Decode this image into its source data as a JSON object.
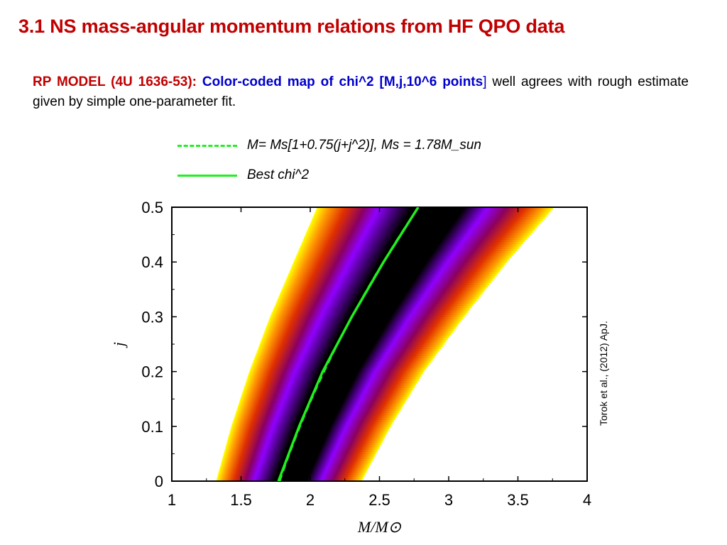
{
  "title": "3.1 NS mass-angular momentum relations from HF QPO data",
  "intro": {
    "part1": "RP MODEL (4U 1636-53): ",
    "part2": "Color-coded map of chi^2 [M,j,10^6 points",
    "part3": "]",
    "part4": " well agrees with rough estimate given by simple one-parameter fit."
  },
  "legend": {
    "dashed_color": "#22ee22",
    "solid_color": "#22ee22",
    "dashed_label": "M= Ms[1+0.75(j+j^2)],  Ms = 1.78M_sun",
    "solid_label": "Best  chi^2"
  },
  "credit": "Torok et al., (2012) ApJ.",
  "chart_data": {
    "type": "heatmap",
    "xlabel": "M/M⊙",
    "ylabel": "j",
    "xlim": [
      1,
      4
    ],
    "ylim": [
      0,
      0.5
    ],
    "x_ticks": [
      "1",
      "1.5",
      "2",
      "2.5",
      "3",
      "3.5",
      "4"
    ],
    "y_ticks": [
      "0",
      "0.1",
      "0.2",
      "0.3",
      "0.4",
      "0.5"
    ],
    "colormap": [
      "#ffff00",
      "#ff9900",
      "#e03000",
      "#8a0060",
      "#9000ff",
      "#000000"
    ],
    "best_fit_curve": {
      "style": "solid",
      "color": "#22ee22",
      "points": [
        [
          1.77,
          0.0
        ],
        [
          1.92,
          0.1
        ],
        [
          2.09,
          0.2
        ],
        [
          2.3,
          0.3
        ],
        [
          2.53,
          0.4
        ],
        [
          2.78,
          0.5
        ]
      ]
    },
    "one_parameter_fit": {
      "style": "dashed",
      "color": "#22ee22",
      "Ms": 1.78,
      "formula": "M = Ms[1+0.75(j+j^2)]"
    },
    "band_edges": {
      "left": [
        [
          1.32,
          0.0
        ],
        [
          1.43,
          0.1
        ],
        [
          1.56,
          0.2
        ],
        [
          1.71,
          0.3
        ],
        [
          1.88,
          0.4
        ],
        [
          2.05,
          0.5
        ]
      ],
      "right": [
        [
          2.37,
          0.0
        ],
        [
          2.58,
          0.1
        ],
        [
          2.82,
          0.2
        ],
        [
          3.11,
          0.3
        ],
        [
          3.42,
          0.4
        ],
        [
          3.76,
          0.5
        ]
      ]
    }
  }
}
